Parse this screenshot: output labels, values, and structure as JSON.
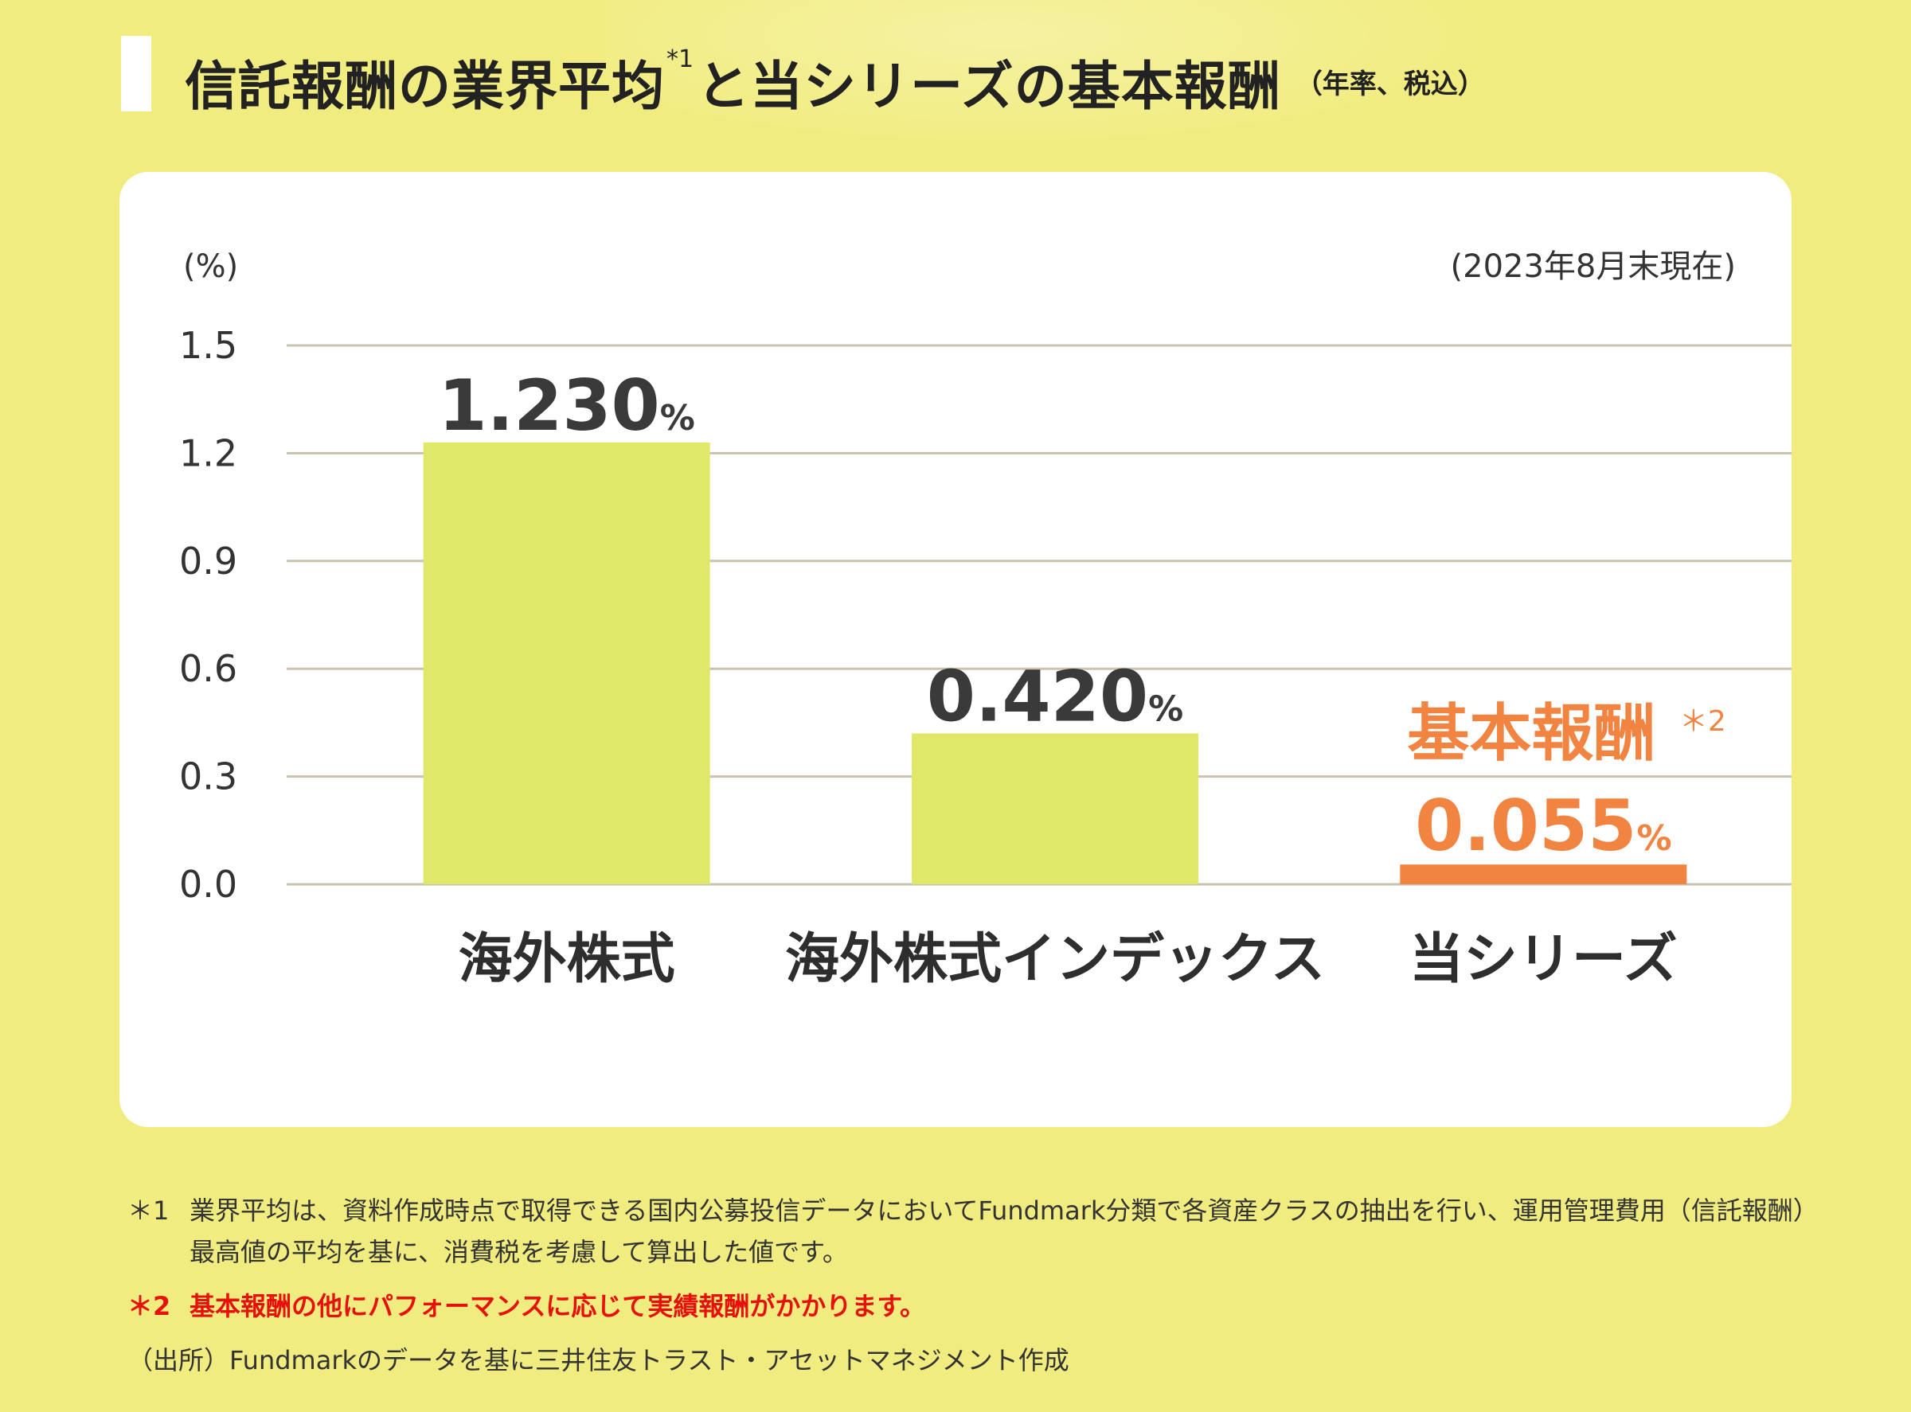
{
  "header": {
    "title_main": "信託報酬の業界平均",
    "title_sup": "*1",
    "title_rest": "と当シリーズの基本報酬",
    "title_sub": "（年率、税込）"
  },
  "chart_data": {
    "type": "bar",
    "unit_label": "(%)",
    "as_of": "(2023年8月末現在)",
    "ylim": [
      0,
      1.5
    ],
    "yticks": [
      "0.0",
      "0.3",
      "0.6",
      "0.9",
      "1.2",
      "1.5"
    ],
    "categories": [
      "海外株式",
      "海外株式インデックス",
      "当シリーズ"
    ],
    "values": [
      1.23,
      0.42,
      0.055
    ],
    "value_labels": [
      "1.230",
      "0.420",
      "0.055"
    ],
    "value_unit": "%",
    "highlight_label": "基本報酬",
    "highlight_mark": "＊2",
    "colors": {
      "bar": "#e0e867",
      "highlight": "#f28442",
      "grid": "#c9c3b0",
      "axis_text": "#333333",
      "value_text": "#3a3a3a"
    },
    "grid": true,
    "legend": "none"
  },
  "footnotes": {
    "n1_mark": "＊1",
    "n1_text": "業界平均は、資料作成時点で取得できる国内公募投信データにおいてFundmark分類で各資産クラスの抽出を行い、運用管理費用（信託報酬）最高値の平均を基に、消費税を考慮して算出した値です。",
    "n2_mark": "＊2",
    "n2_text": "基本報酬の他にパフォーマンスに応じて実績報酬がかかります。",
    "source": "（出所）Fundmarkのデータを基に三井住友トラスト・アセットマネジメント作成"
  }
}
